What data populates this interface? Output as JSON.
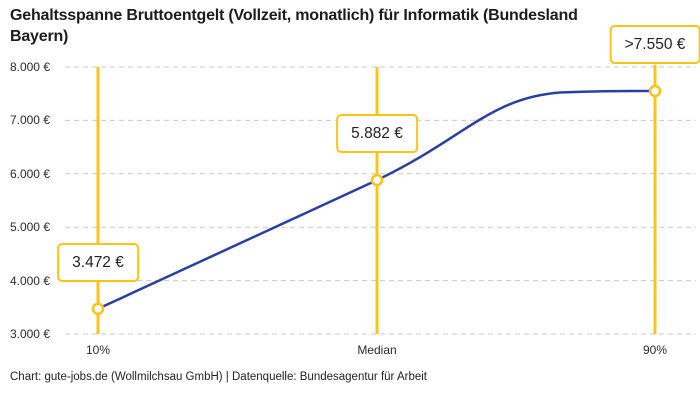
{
  "header": {
    "title_lines": [
      "Gehaltsspanne Bruttoentgelt (Vollzeit, monatlich) für Informatik (Bundesland",
      "Bayern)"
    ]
  },
  "footer": {
    "credit": "Chart: gute-jobs.de (Wollmilchsau GmbH) | Datenquelle: Bundesagentur für Arbeit"
  },
  "chart_data": {
    "type": "line",
    "title": "Gehaltsspanne Bruttoentgelt (Vollzeit, monatlich) für Informatik (Bundesland Bayern)",
    "x_categories": [
      "10%",
      "Median",
      "90%"
    ],
    "series": [
      {
        "values": [
          3472,
          5882,
          7550
        ]
      }
    ],
    "point_labels": [
      "3.472 €",
      "5.882 €",
      ">7.550 €"
    ],
    "y_ticks": [
      {
        "value": 8000,
        "label": "8.000 €"
      },
      {
        "value": 7000,
        "label": "7.000 €"
      },
      {
        "value": 6000,
        "label": "6.000 €"
      },
      {
        "value": 5000,
        "label": "5.000 €"
      },
      {
        "value": 4000,
        "label": "4.000 €"
      },
      {
        "value": 3000,
        "label": "3.000 €"
      }
    ],
    "ylim": [
      3000,
      8000
    ],
    "grid": "horizontal-dashed",
    "legend": "none",
    "colors": {
      "line": "#2b3f9e",
      "accent": "#fcc419",
      "gridline": "#c9c9c9",
      "marker_fill": "#ffffff",
      "text": "#222222"
    }
  }
}
